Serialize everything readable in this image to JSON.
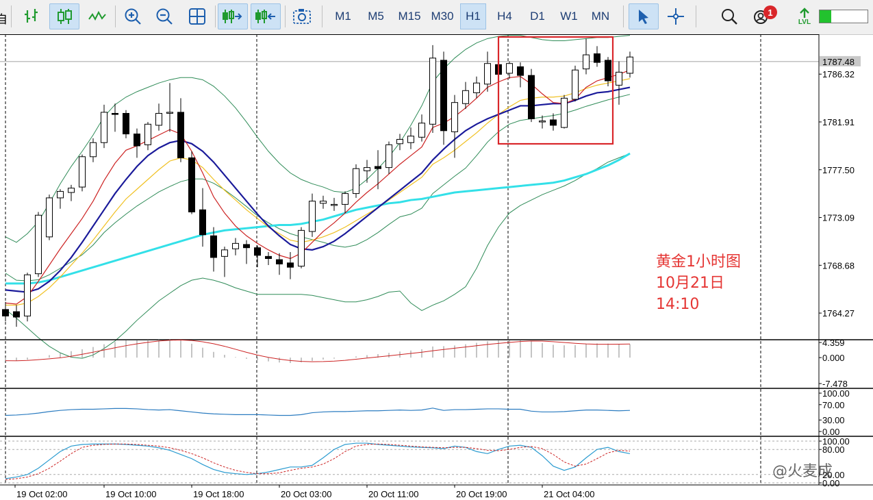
{
  "toolbar": {
    "left_cut_label": "自",
    "timeframes": [
      "M1",
      "M5",
      "M15",
      "M30",
      "H1",
      "H4",
      "D1",
      "W1",
      "MN"
    ],
    "active_timeframe": "H1",
    "notification_count": "1",
    "lvl_label": "LVL",
    "icons": [
      "bar-chart-icon",
      "candlestick-icon",
      "line-chart-icon",
      "zoom-in-icon",
      "zoom-out-icon",
      "grid-icon",
      "autoscroll-icon",
      "chart-shift-icon",
      "screenshot-icon",
      "cursor-icon",
      "crosshair-icon",
      "search-icon",
      "account-icon",
      "signal-icon",
      "battery-icon"
    ]
  },
  "annotation": {
    "line1": "黄金1小时图",
    "line2": "10月21日",
    "line3": "14:10"
  },
  "watermark": "@火麦成",
  "colors": {
    "up_candle": "#ffffff",
    "down_candle": "#000000",
    "ma_fast": "#cc2222",
    "ma_mid": "#f0c020",
    "ma_slow": "#1a1a9a",
    "ma_long": "#33e0e8",
    "bollinger": "#2e8b57",
    "highlight_box": "#d9262a",
    "current_price_line": "#a0a0a0"
  },
  "chart_data": {
    "type": "candlestick",
    "symbol_timeframe": "H1",
    "y_ticks": [
      "1786.32",
      "1781.91",
      "1777.50",
      "1773.09",
      "1768.68",
      "1764.27"
    ],
    "y_tick_values": [
      1786.32,
      1781.91,
      1777.5,
      1773.09,
      1768.68,
      1764.27
    ],
    "current_price": "1787.48",
    "ylim": [
      1762.0,
      1790.0
    ],
    "x_labels": [
      "19 Oct 02:00",
      "19 Oct 10:00",
      "19 Oct 18:00",
      "20 Oct 03:00",
      "20 Oct 11:00",
      "20 Oct 19:00",
      "21 Oct 04:00"
    ],
    "x_label_bar_index": [
      0,
      8,
      16,
      24,
      32,
      40,
      48
    ],
    "vertical_separators_bar_index": [
      0,
      23,
      46,
      69
    ],
    "candles": [
      [
        1764.6,
        1765.3,
        1763.5,
        1764.0
      ],
      [
        1764.4,
        1765.0,
        1763.0,
        1763.9
      ],
      [
        1764.0,
        1768.0,
        1763.5,
        1767.8
      ],
      [
        1767.9,
        1773.6,
        1767.6,
        1773.3
      ],
      [
        1771.3,
        1775.2,
        1771.0,
        1774.9
      ],
      [
        1774.9,
        1775.7,
        1773.9,
        1775.5
      ],
      [
        1775.4,
        1776.1,
        1774.6,
        1775.8
      ],
      [
        1775.9,
        1778.9,
        1775.5,
        1778.7
      ],
      [
        1778.7,
        1780.4,
        1778.2,
        1780.0
      ],
      [
        1780.0,
        1783.5,
        1779.5,
        1782.8
      ],
      [
        1782.7,
        1783.6,
        1781.0,
        1782.6
      ],
      [
        1782.7,
        1783.0,
        1780.4,
        1780.8
      ],
      [
        1780.8,
        1781.3,
        1778.6,
        1779.7
      ],
      [
        1779.8,
        1781.9,
        1779.3,
        1781.7
      ],
      [
        1781.6,
        1783.6,
        1781.1,
        1782.7
      ],
      [
        1782.8,
        1785.5,
        1781.0,
        1782.8
      ],
      [
        1782.8,
        1784.1,
        1778.2,
        1778.6
      ],
      [
        1778.6,
        1779.2,
        1773.4,
        1773.6
      ],
      [
        1773.8,
        1775.8,
        1770.4,
        1771.5
      ],
      [
        1771.4,
        1772.2,
        1768.1,
        1769.4
      ],
      [
        1769.5,
        1770.4,
        1767.6,
        1770.1
      ],
      [
        1770.2,
        1771.2,
        1769.6,
        1770.7
      ],
      [
        1770.6,
        1771.0,
        1768.8,
        1770.3
      ],
      [
        1770.3,
        1770.5,
        1768.5,
        1769.6
      ],
      [
        1769.5,
        1769.9,
        1768.7,
        1769.3
      ],
      [
        1769.2,
        1769.8,
        1767.8,
        1768.8
      ],
      [
        1768.9,
        1769.9,
        1767.4,
        1768.5
      ],
      [
        1768.6,
        1772.2,
        1768.4,
        1771.9
      ],
      [
        1771.8,
        1775.3,
        1771.3,
        1774.6
      ],
      [
        1774.4,
        1775.1,
        1773.9,
        1774.6
      ],
      [
        1774.3,
        1774.9,
        1773.7,
        1774.3
      ],
      [
        1774.3,
        1775.5,
        1773.5,
        1775.3
      ],
      [
        1775.3,
        1778.0,
        1774.9,
        1777.6
      ],
      [
        1777.4,
        1778.4,
        1776.3,
        1777.7
      ],
      [
        1777.8,
        1779.3,
        1775.7,
        1777.6
      ],
      [
        1777.7,
        1780.1,
        1777.1,
        1779.8
      ],
      [
        1779.9,
        1780.8,
        1779.3,
        1780.3
      ],
      [
        1780.0,
        1781.4,
        1779.4,
        1780.6
      ],
      [
        1780.5,
        1782.6,
        1780.1,
        1781.8
      ],
      [
        1781.7,
        1789.0,
        1780.9,
        1787.8
      ],
      [
        1787.6,
        1788.4,
        1779.8,
        1781.1
      ],
      [
        1781.0,
        1784.4,
        1778.6,
        1783.7
      ],
      [
        1783.6,
        1785.6,
        1783.1,
        1784.8
      ],
      [
        1784.6,
        1786.1,
        1784.1,
        1785.5
      ],
      [
        1785.4,
        1788.4,
        1784.7,
        1787.3
      ],
      [
        1787.2,
        1788.0,
        1786.1,
        1786.3
      ],
      [
        1786.4,
        1787.5,
        1785.9,
        1787.3
      ],
      [
        1787.0,
        1787.4,
        1785.1,
        1786.2
      ],
      [
        1786.2,
        1786.8,
        1781.9,
        1782.2
      ],
      [
        1782.0,
        1782.5,
        1781.3,
        1782.0
      ],
      [
        1782.1,
        1782.7,
        1781.1,
        1781.6
      ],
      [
        1781.4,
        1784.4,
        1781.3,
        1784.1
      ],
      [
        1784.0,
        1787.1,
        1783.8,
        1786.7
      ],
      [
        1786.8,
        1789.6,
        1786.3,
        1788.1
      ],
      [
        1788.2,
        1788.9,
        1787.0,
        1787.4
      ],
      [
        1787.6,
        1787.9,
        1785.2,
        1785.7
      ],
      [
        1785.3,
        1787.5,
        1783.5,
        1786.5
      ],
      [
        1786.4,
        1788.4,
        1786.0,
        1787.9
      ]
    ],
    "ma_fast": [
      1765.2,
      1765.1,
      1765.8,
      1767.2,
      1768.7,
      1770.2,
      1771.6,
      1773.0,
      1774.6,
      1776.5,
      1778.1,
      1779.3,
      1779.7,
      1780.2,
      1780.7,
      1781.2,
      1780.8,
      1779.2,
      1777.2,
      1775.0,
      1773.5,
      1772.3,
      1771.4,
      1770.7,
      1770.1,
      1769.6,
      1769.3,
      1769.8,
      1770.8,
      1771.8,
      1772.6,
      1773.5,
      1774.5,
      1775.4,
      1776.2,
      1777.1,
      1778.0,
      1778.8,
      1779.6,
      1781.4,
      1781.8,
      1782.4,
      1783.2,
      1784.1,
      1785.1,
      1785.6,
      1786.0,
      1786.1,
      1785.4,
      1784.5,
      1783.7,
      1783.6,
      1784.0,
      1785.1,
      1785.7,
      1786.0,
      1786.3,
      1786.7
    ],
    "ma_mid": [
      1765.0,
      1765.0,
      1765.2,
      1765.8,
      1766.6,
      1767.6,
      1768.7,
      1769.8,
      1771.0,
      1772.3,
      1773.6,
      1774.8,
      1775.7,
      1776.6,
      1777.5,
      1778.3,
      1778.6,
      1778.4,
      1777.7,
      1776.6,
      1775.6,
      1774.7,
      1773.8,
      1773.0,
      1772.2,
      1771.6,
      1771.0,
      1770.8,
      1771.0,
      1771.3,
      1771.7,
      1772.2,
      1772.8,
      1773.4,
      1774.0,
      1774.7,
      1775.4,
      1776.1,
      1776.8,
      1778.0,
      1778.6,
      1779.3,
      1780.1,
      1780.9,
      1781.8,
      1782.6,
      1783.3,
      1783.9,
      1784.1,
      1784.2,
      1784.2,
      1784.3,
      1784.6,
      1785.0,
      1785.3,
      1785.5,
      1785.7,
      1785.9
    ],
    "ma_slow": [
      1766.4,
      1766.3,
      1766.2,
      1766.5,
      1767.2,
      1768.2,
      1769.4,
      1770.8,
      1772.3,
      1773.8,
      1775.3,
      1776.6,
      1777.8,
      1778.8,
      1779.5,
      1780.0,
      1780.2,
      1779.9,
      1779.2,
      1778.2,
      1777.0,
      1775.8,
      1774.6,
      1773.4,
      1772.3,
      1771.4,
      1770.6,
      1770.2,
      1770.1,
      1770.4,
      1770.9,
      1771.6,
      1772.4,
      1773.2,
      1774.0,
      1774.8,
      1775.6,
      1776.4,
      1777.2,
      1778.4,
      1779.4,
      1780.3,
      1781.1,
      1781.7,
      1782.2,
      1782.6,
      1783.0,
      1783.4,
      1783.4,
      1783.5,
      1783.6,
      1783.6,
      1783.9,
      1784.3,
      1784.6,
      1784.7,
      1784.9,
      1785.1
    ],
    "ma_long": [
      1767.0,
      1767.0,
      1767.0,
      1767.1,
      1767.3,
      1767.6,
      1767.9,
      1768.2,
      1768.5,
      1768.8,
      1769.1,
      1769.4,
      1769.7,
      1770.0,
      1770.3,
      1770.6,
      1770.9,
      1771.2,
      1771.5,
      1771.7,
      1771.9,
      1772.0,
      1772.1,
      1772.2,
      1772.3,
      1772.4,
      1772.4,
      1772.5,
      1772.7,
      1772.9,
      1773.2,
      1773.5,
      1773.8,
      1774.0,
      1774.2,
      1774.4,
      1774.5,
      1774.7,
      1774.8,
      1775.0,
      1775.2,
      1775.4,
      1775.5,
      1775.6,
      1775.7,
      1775.8,
      1775.9,
      1776.0,
      1776.1,
      1776.2,
      1776.3,
      1776.5,
      1776.8,
      1777.1,
      1777.5,
      1777.9,
      1778.4,
      1779.0
    ],
    "bb_upper": [
      1771.3,
      1770.8,
      1771.6,
      1772.7,
      1774.4,
      1776.2,
      1777.8,
      1779.2,
      1780.7,
      1782.4,
      1783.5,
      1784.2,
      1784.7,
      1785.1,
      1785.5,
      1785.8,
      1786.0,
      1786.0,
      1785.8,
      1785.2,
      1784.3,
      1783.2,
      1781.9,
      1780.5,
      1779.2,
      1778.1,
      1777.2,
      1776.6,
      1776.2,
      1775.9,
      1775.5,
      1775.4,
      1775.8,
      1776.6,
      1777.6,
      1778.7,
      1780.0,
      1781.6,
      1783.4,
      1785.6,
      1786.8,
      1787.8,
      1788.6,
      1789.2,
      1789.6,
      1789.8,
      1789.9,
      1789.9,
      1789.7,
      1789.5,
      1789.4,
      1789.4,
      1789.5,
      1789.6,
      1789.7,
      1789.7,
      1789.8,
      1789.9
    ],
    "bb_lower": [
      1764.6,
      1763.8,
      1762.9,
      1762.0,
      1761.2,
      1760.6,
      1760.2,
      1760.1,
      1760.4,
      1761.0,
      1761.7,
      1762.6,
      1763.6,
      1764.5,
      1765.4,
      1766.1,
      1766.8,
      1767.3,
      1767.5,
      1767.3,
      1767.0,
      1766.6,
      1766.3,
      1766.0,
      1766.0,
      1766.0,
      1766.0,
      1766.0,
      1765.9,
      1765.7,
      1765.5,
      1765.3,
      1765.3,
      1765.5,
      1765.8,
      1766.2,
      1766.3,
      1765.2,
      1764.5,
      1765.0,
      1765.4,
      1766.0,
      1766.7,
      1768.4,
      1770.5,
      1772.2,
      1773.5,
      1774.2,
      1774.7,
      1775.2,
      1775.6,
      1776.0,
      1776.5,
      1777.1,
      1777.6,
      1778.2,
      1778.6,
      1779.0
    ],
    "macd_panel": {
      "ticks": [
        "4.359",
        "0.000",
        "-7.478"
      ],
      "tick_values": [
        4.359,
        0.0,
        -7.478
      ]
    },
    "rsi_panel": {
      "ticks": [
        "100.00",
        "70.00",
        "30.00",
        "0.00"
      ],
      "tick_values": [
        100,
        70,
        30,
        0
      ],
      "values": [
        42,
        43,
        45,
        48,
        52,
        55,
        57,
        58,
        58,
        59,
        60,
        60,
        59,
        57,
        56,
        57,
        54,
        51,
        48,
        46,
        45,
        44,
        44,
        44,
        43,
        42,
        42,
        44,
        49,
        51,
        52,
        52,
        53,
        54,
        54,
        55,
        56,
        55,
        56,
        61,
        55,
        57,
        57,
        58,
        59,
        59,
        58,
        58,
        53,
        51,
        51,
        52,
        54,
        56,
        56,
        55,
        54,
        55
      ]
    },
    "stoch_panel": {
      "ticks": [
        "100.00",
        "80.00",
        "20.00",
        "0.00"
      ],
      "tick_values": [
        100,
        80,
        20,
        0
      ],
      "main": [
        10,
        14,
        20,
        35,
        55,
        75,
        88,
        92,
        93,
        93,
        93,
        92,
        90,
        88,
        84,
        78,
        68,
        58,
        44,
        32,
        25,
        22,
        20,
        22,
        26,
        32,
        38,
        38,
        42,
        60,
        80,
        92,
        95,
        95,
        92,
        90,
        88,
        86,
        85,
        84,
        82,
        88,
        85,
        75,
        70,
        80,
        88,
        90,
        85,
        65,
        40,
        30,
        38,
        60,
        80,
        85,
        75,
        70
      ],
      "signal": [
        8,
        10,
        14,
        22,
        35,
        52,
        70,
        85,
        90,
        92,
        93,
        93,
        92,
        90,
        88,
        84,
        78,
        70,
        60,
        48,
        38,
        30,
        25,
        22,
        22,
        24,
        30,
        35,
        38,
        45,
        58,
        75,
        88,
        92,
        93,
        92,
        90,
        88,
        86,
        85,
        84,
        85,
        85,
        82,
        78,
        77,
        80,
        85,
        87,
        82,
        68,
        50,
        40,
        45,
        58,
        72,
        78,
        76
      ]
    }
  }
}
